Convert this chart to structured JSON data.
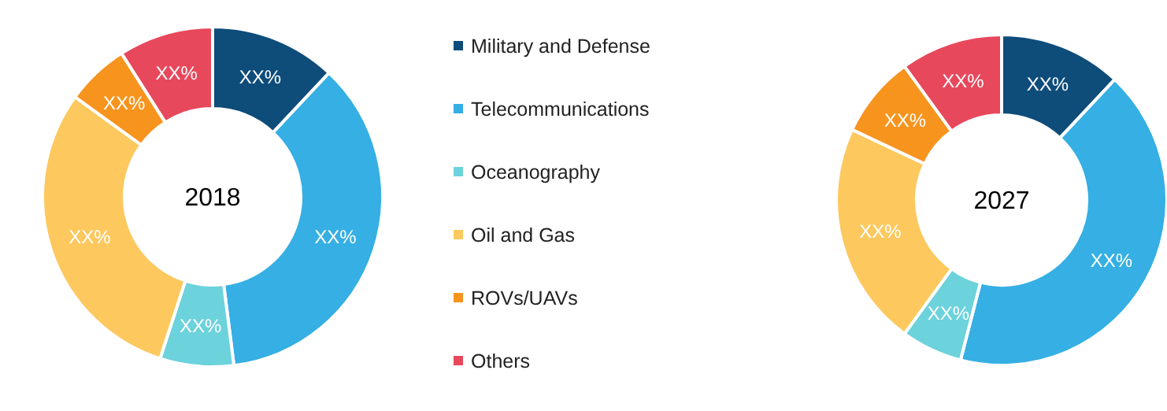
{
  "chart_data": [
    {
      "type": "donut",
      "title": "2018",
      "categories": [
        "Military and Defense",
        "Telecommunications",
        "Oceanography",
        "Oil and Gas",
        "ROVs/UAVs",
        "Others"
      ],
      "values": [
        12,
        36,
        7,
        30,
        6,
        9
      ],
      "colors": [
        "#0e4c7a",
        "#35afe4",
        "#6cd2dc",
        "#fdc85e",
        "#f7941d",
        "#e8485c"
      ],
      "value_labels": [
        "XX%",
        "XX%",
        "XX%",
        "XX%",
        "XX%",
        "XX%"
      ],
      "legend": "right"
    },
    {
      "type": "donut",
      "title": "2027",
      "categories": [
        null,
        null,
        null,
        null,
        null,
        null
      ],
      "values": [
        12,
        42,
        6,
        22,
        8,
        10
      ],
      "colors": [
        "#0e4c7a",
        "#35afe4",
        "#6cd2dc",
        "#fdc85e",
        "#f7941d",
        "#e8485c"
      ],
      "value_labels": [
        "XX%",
        "XX%",
        "XX%",
        "XX%",
        "XX%",
        "XX%"
      ]
    }
  ]
}
